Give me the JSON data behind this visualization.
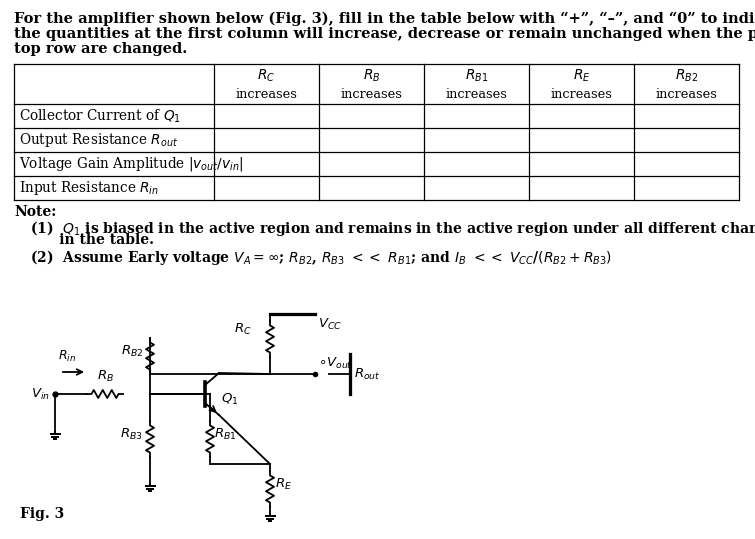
{
  "para": "For the amplifier shown below (Fig. 3), fill in the table below with “+”, “–”, and “0” to indicate whether\nthe quantities at the first column will increase, decrease or remain unchanged when the parameters at the\ntop row are changed.",
  "col_labels": [
    "RC",
    "RB",
    "RB1",
    "RE",
    "RB2"
  ],
  "row_labels": [
    "Collector Current of Q1",
    "Output Resistance Rout",
    "Voltage Gain Amplitude |Vout/Vin|",
    "Input Resistance Rin"
  ],
  "note1a": "(1)  Q",
  "note1b": "1",
  "note1c": " is biased in the active region and remains in the active region under all different changes listed",
  "note1d": "      in the table.",
  "note2": "(2)  Assume Early voltage V",
  "fig_label": "Fig. 3",
  "bg": "#ffffff",
  "lw": 1.3,
  "fs_para": 10.5,
  "fs_table": 9.8,
  "fs_note": 10.0,
  "fs_circ": 9.5
}
